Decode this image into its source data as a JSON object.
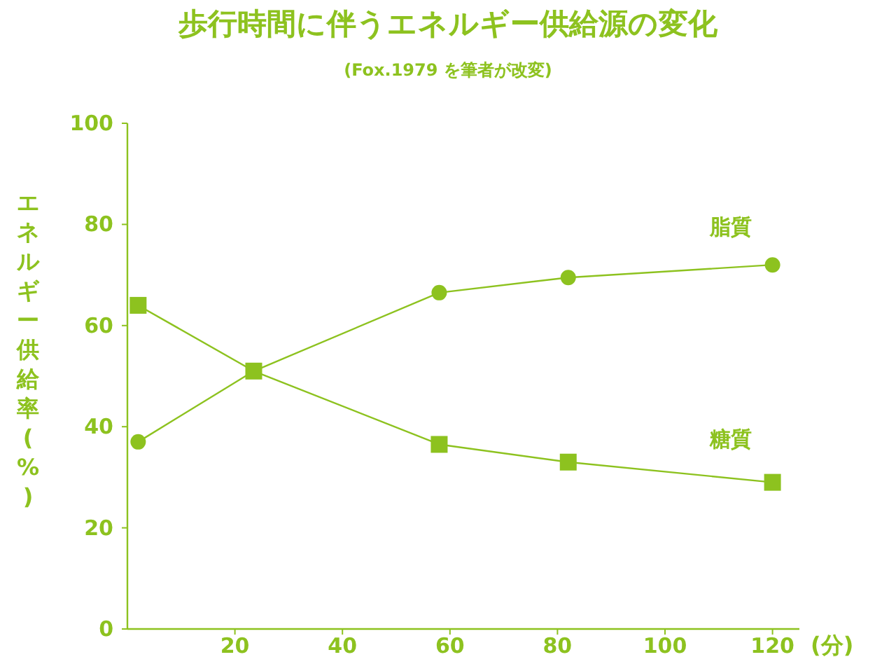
{
  "chart_data": {
    "type": "line",
    "title": "歩行時間に伴うエネルギー供給源の変化",
    "subtitle": "(Fox.1979 を筆者が改変)",
    "xlabel": "(分)",
    "ylabel": "エネルギー供給率(%)",
    "xlim": [
      0,
      125
    ],
    "xticks": [
      20,
      40,
      60,
      80,
      100,
      120
    ],
    "ylim": [
      0,
      100
    ],
    "yticks": [
      0,
      20,
      40,
      60,
      80,
      100
    ],
    "grid": false,
    "legend": false,
    "series": [
      {
        "name": "脂質",
        "color": "#8dc21f",
        "marker": "circle",
        "x": [
          2,
          23.5,
          58,
          82,
          120
        ],
        "values": [
          37,
          51,
          66.5,
          69.5,
          72
        ]
      },
      {
        "name": "糖質",
        "color": "#8dc21f",
        "marker": "square",
        "x": [
          2,
          23.5,
          58,
          82,
          120
        ],
        "values": [
          64,
          51,
          36.5,
          33,
          29
        ]
      }
    ]
  }
}
